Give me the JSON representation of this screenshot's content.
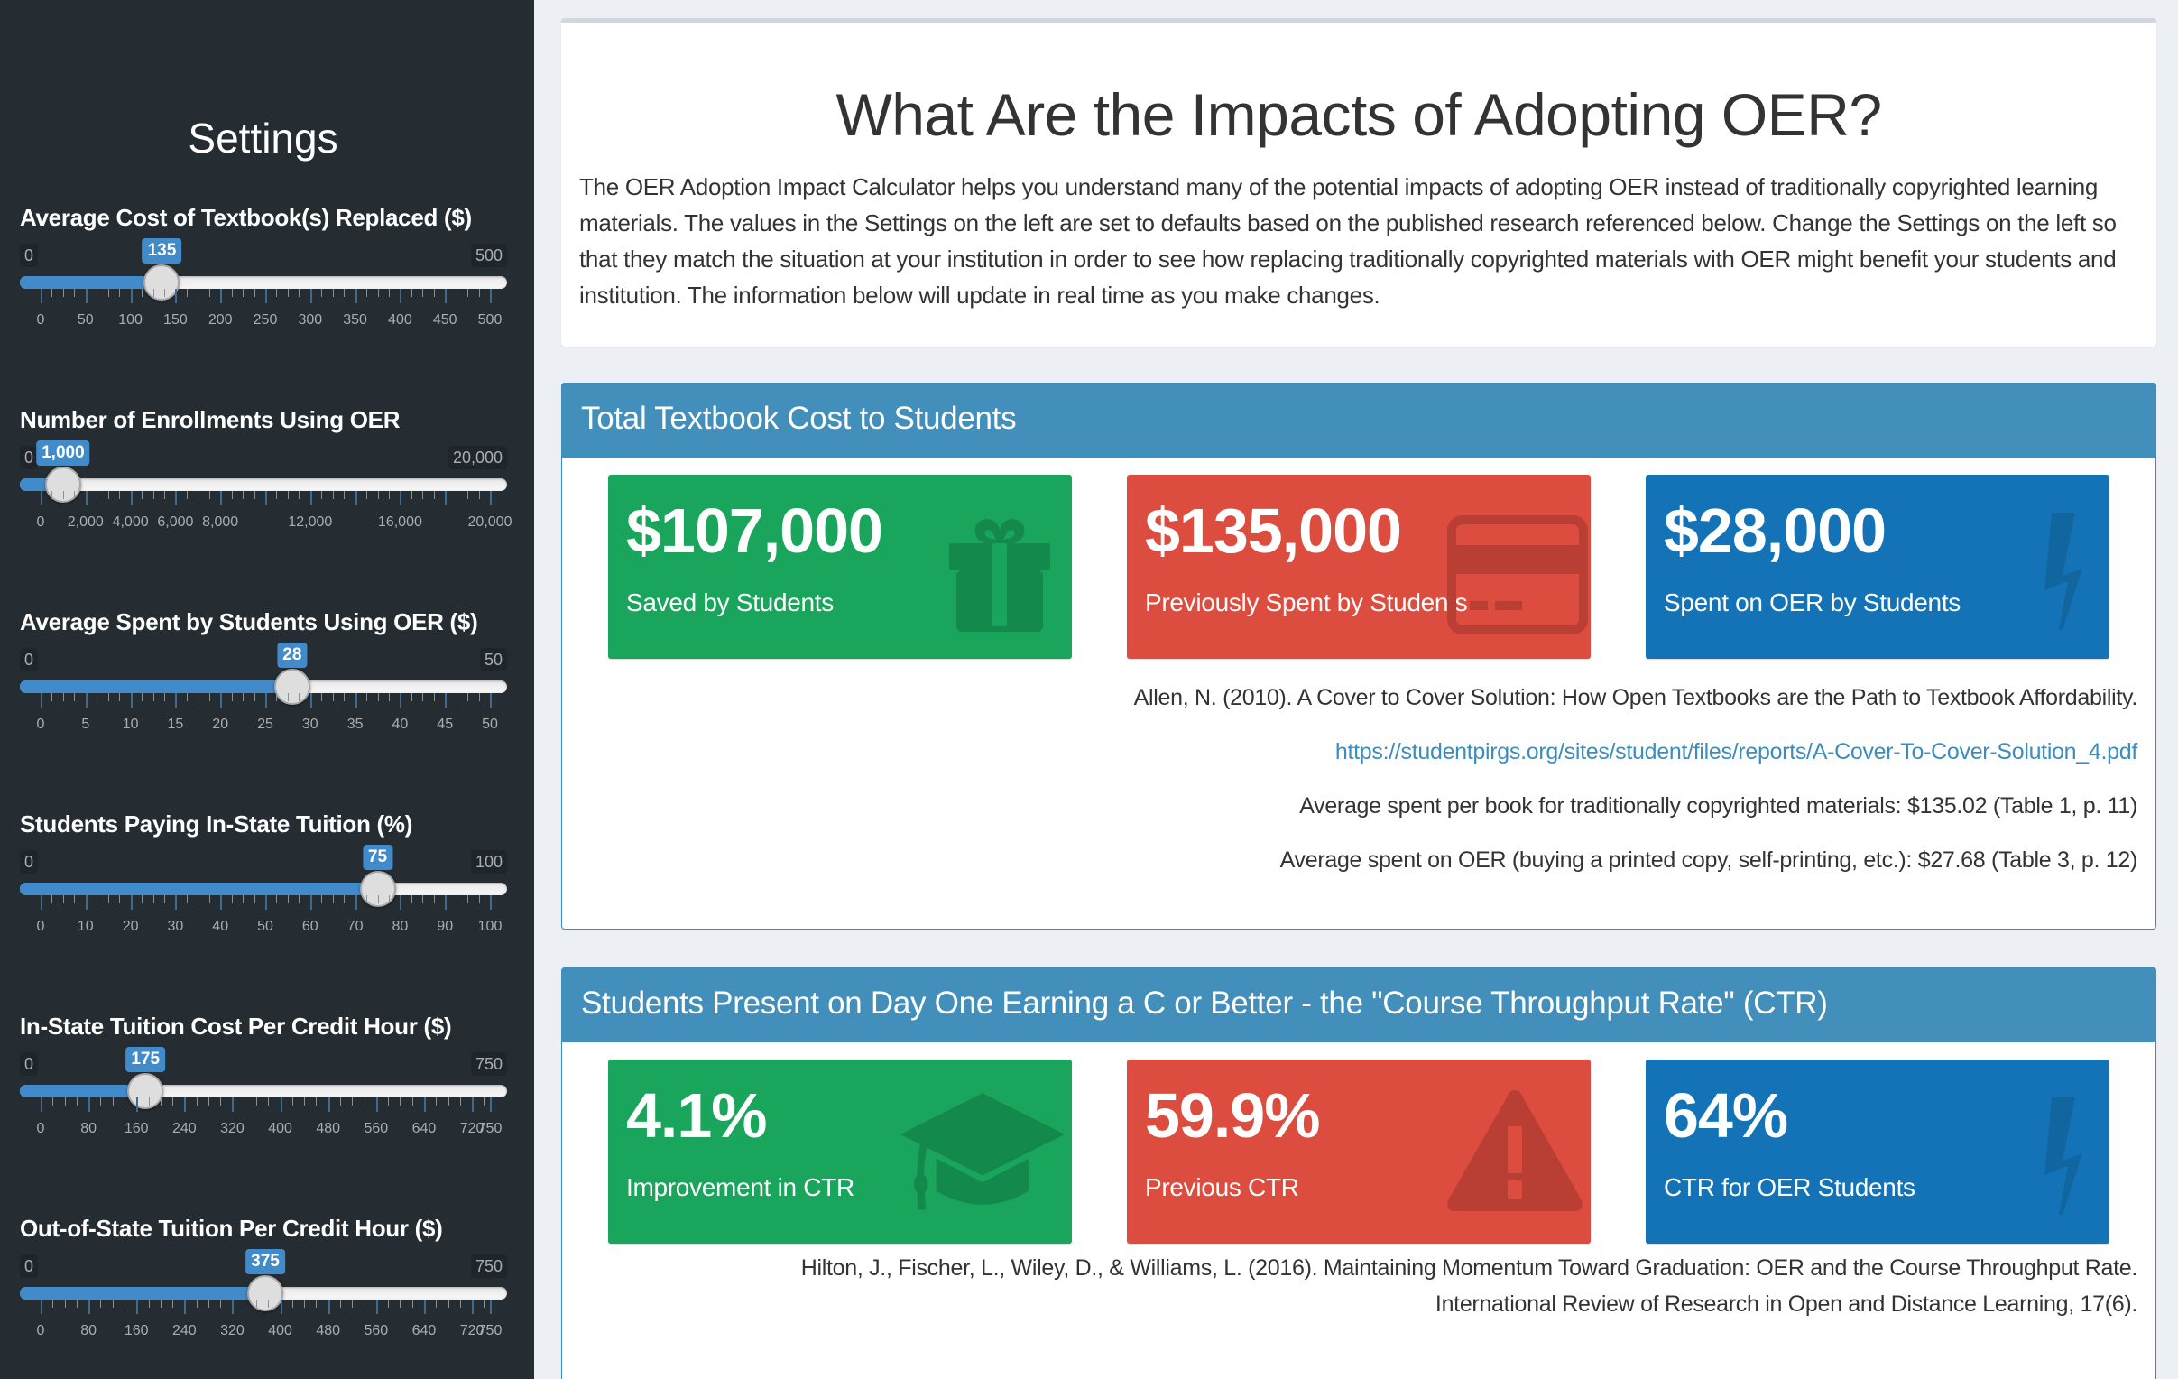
{
  "sidebar": {
    "title": "Settings",
    "sliders": [
      {
        "label": "Average Cost of Textbook(s) Replaced ($)",
        "min": 0,
        "max": 500,
        "value": 135,
        "min_label": "0",
        "max_label": "500",
        "value_label": "135",
        "ticks": [
          "0",
          "50",
          "100",
          "150",
          "200",
          "250",
          "300",
          "350",
          "400",
          "450",
          "500"
        ]
      },
      {
        "label": "Number of Enrollments Using OER",
        "min": 0,
        "max": 20000,
        "value": 1000,
        "min_label": "0",
        "max_label": "20,000",
        "value_label": "1,000",
        "ticks": [
          "0",
          "2,000",
          "4,000",
          "6,000",
          "8,000",
          "",
          "12,000",
          "",
          "16,000",
          "",
          "20,000"
        ]
      },
      {
        "label": "Average Spent by Students Using OER ($)",
        "min": 0,
        "max": 50,
        "value": 28,
        "min_label": "0",
        "max_label": "50",
        "value_label": "28",
        "ticks": [
          "0",
          "5",
          "10",
          "15",
          "20",
          "25",
          "30",
          "35",
          "40",
          "45",
          "50"
        ]
      },
      {
        "label": "Students Paying In-State Tuition (%)",
        "min": 0,
        "max": 100,
        "value": 75,
        "min_label": "0",
        "max_label": "100",
        "value_label": "75",
        "ticks": [
          "0",
          "10",
          "20",
          "30",
          "40",
          "50",
          "60",
          "70",
          "80",
          "90",
          "100"
        ]
      },
      {
        "label": "In-State Tuition Cost Per Credit Hour ($)",
        "min": 0,
        "max": 750,
        "value": 175,
        "min_label": "0",
        "max_label": "750",
        "value_label": "175",
        "ticks": [
          "0",
          "80",
          "160",
          "240",
          "320",
          "400",
          "480",
          "560",
          "640",
          "720",
          "750"
        ]
      },
      {
        "label": "Out-of-State Tuition Per Credit Hour ($)",
        "min": 0,
        "max": 750,
        "value": 375,
        "min_label": "0",
        "max_label": "750",
        "value_label": "375",
        "ticks": [
          "0",
          "80",
          "160",
          "240",
          "320",
          "400",
          "480",
          "560",
          "640",
          "720",
          "750"
        ]
      }
    ]
  },
  "intro": {
    "title": "What Are the Impacts of Adopting OER?",
    "text": "The OER Adoption Impact Calculator helps you understand many of the potential impacts of adopting OER instead of traditionally copyrighted learning materials. The values in the Settings on the left are set to defaults based on the published research referenced below. Change the Settings on the left so that they match the situation at your institution in order to see how replacing traditionally copyrighted materials with OER might benefit your students and institution. The information below will update in real time as you make changes."
  },
  "textbook_cost": {
    "title": "Total Textbook Cost to Students",
    "cards": [
      {
        "value": "$107,000",
        "label": "Saved by Students",
        "icon": "gift-icon",
        "color": "#1aa55c"
      },
      {
        "value": "$135,000",
        "label": "Previously Spent by Students",
        "icon": "credit-card-icon",
        "color": "#dc4c3f"
      },
      {
        "value": "$28,000",
        "label": "Spent on OER by Students",
        "icon": "bolt-icon",
        "color": "#1373b6"
      }
    ],
    "references": {
      "citation": "Allen, N. (2010). A Cover to Cover Solution: How Open Textbooks are the Path to Textbook Affordability.",
      "link": "https://studentpirgs.org/sites/student/files/reports/A-Cover-To-Cover-Solution_4.pdf",
      "note1": "Average spent per book for traditionally copyrighted materials: $135.02 (Table 1, p. 11)",
      "note2": "Average spent on OER (buying a printed copy, self-printing, etc.): $27.68 (Table 3, p. 12)"
    }
  },
  "ctr": {
    "title": "Students Present on Day One Earning a C or Better - the \"Course Throughput Rate\" (CTR)",
    "cards": [
      {
        "value": "4.1%",
        "label": "Improvement in CTR",
        "icon": "graduation-cap-icon",
        "color": "#1aa55c"
      },
      {
        "value": "59.9%",
        "label": "Previous CTR",
        "icon": "warning-icon",
        "color": "#dc4c3f"
      },
      {
        "value": "64%",
        "label": "CTR for OER Students",
        "icon": "bolt-icon",
        "color": "#1373b6"
      }
    ],
    "references": {
      "citation_line1": "Hilton, J., Fischer, L., Wiley, D., & Williams, L. (2016). Maintaining Momentum Toward Graduation: OER and the Course Throughput Rate.",
      "citation_line2": "International Review of Research in Open and Distance Learning, 17(6)."
    }
  },
  "colors": {
    "sidebar_bg": "#252c32",
    "accent": "#428bca",
    "panel_header": "#428fbb",
    "page_bg": "#ecf0f5"
  }
}
